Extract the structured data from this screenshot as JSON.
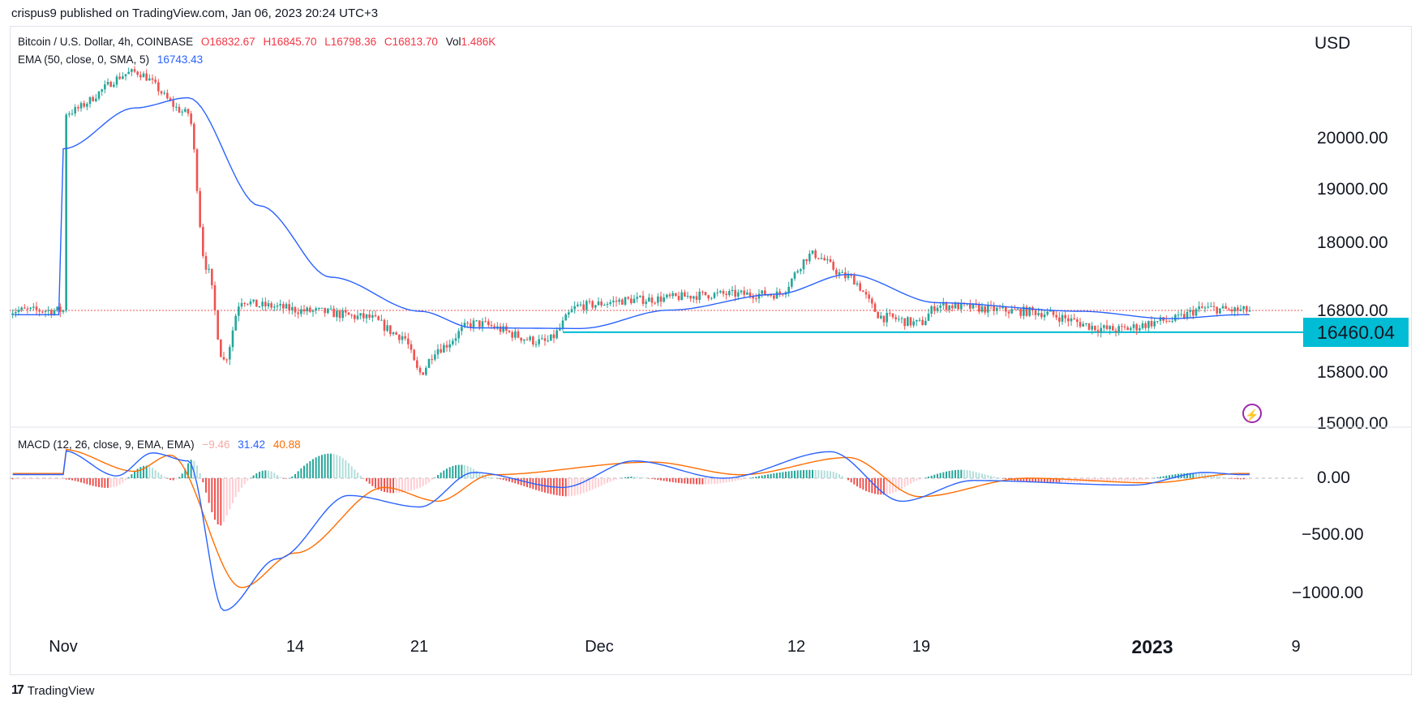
{
  "publisher": "crispus9 published on TradingView.com, Jan 06, 2023 20:24 UTC+3",
  "legend": {
    "symbol": "Bitcoin / U.S. Dollar, 4h, COINBASE",
    "open": "O16832.67",
    "high": "H16845.70",
    "low": "L16798.36",
    "close": "C16813.70",
    "vol_label": "Vol",
    "vol": "1.486K",
    "ema_label": "EMA (50, close, 0, SMA, 5)",
    "ema_value": "16743.43",
    "macd_label": "MACD (12, 26, close, 9, EMA, EMA)",
    "macd_hist": "−9.46",
    "macd_line": "31.42",
    "macd_signal": "40.88"
  },
  "currency": "USD",
  "price_label": "16460.04",
  "price_ticks": [
    "20000.00",
    "19000.00",
    "18000.00",
    "16800.00",
    "15800.00",
    "15000.00"
  ],
  "macd_ticks": [
    "0.00",
    "−500.00",
    "−1000.00"
  ],
  "time_ticks": [
    {
      "label": "Nov",
      "bold": false
    },
    {
      "label": "14",
      "bold": false
    },
    {
      "label": "21",
      "bold": false
    },
    {
      "label": "Dec",
      "bold": false
    },
    {
      "label": "12",
      "bold": false
    },
    {
      "label": "19",
      "bold": false
    },
    {
      "label": "2023",
      "bold": true
    },
    {
      "label": "9",
      "bold": false
    }
  ],
  "brand": "TradingView",
  "colors": {
    "up": "#26a69a",
    "down": "#ef5350",
    "ema": "#2962ff",
    "macd": "#2962ff",
    "signal": "#ff6d00",
    "support": "#00bcd4"
  },
  "chart_data": {
    "type": "candlestick",
    "title": "Bitcoin / U.S. Dollar, 4h, COINBASE",
    "x_label": "",
    "y_label": "USD",
    "x_ticks": [
      "Nov",
      "14",
      "21",
      "Dec",
      "12",
      "19",
      "2023",
      "9"
    ],
    "price_anchors": [
      {
        "date": "2022-11-01",
        "price": 20500
      },
      {
        "date": "2022-11-05",
        "price": 21300
      },
      {
        "date": "2022-11-08",
        "price": 20500
      },
      {
        "date": "2022-11-09",
        "price": 17600
      },
      {
        "date": "2022-11-10",
        "price": 16000
      },
      {
        "date": "2022-11-11",
        "price": 17000
      },
      {
        "date": "2022-11-12",
        "price": 16900
      },
      {
        "date": "2022-11-15",
        "price": 16800
      },
      {
        "date": "2022-11-18",
        "price": 16700
      },
      {
        "date": "2022-11-20",
        "price": 16400
      },
      {
        "date": "2022-11-21",
        "price": 15800
      },
      {
        "date": "2022-11-22",
        "price": 16200
      },
      {
        "date": "2022-11-24",
        "price": 16600
      },
      {
        "date": "2022-11-28",
        "price": 16300
      },
      {
        "date": "2022-11-30",
        "price": 16900
      },
      {
        "date": "2022-12-03",
        "price": 17000
      },
      {
        "date": "2022-12-08",
        "price": 17100
      },
      {
        "date": "2022-12-11",
        "price": 17100
      },
      {
        "date": "2022-12-13",
        "price": 17800
      },
      {
        "date": "2022-12-15",
        "price": 17400
      },
      {
        "date": "2022-12-17",
        "price": 16700
      },
      {
        "date": "2022-12-19",
        "price": 16600
      },
      {
        "date": "2022-12-20",
        "price": 16900
      },
      {
        "date": "2022-12-25",
        "price": 16800
      },
      {
        "date": "2022-12-30",
        "price": 16500
      },
      {
        "date": "2023-01-02",
        "price": 16650
      },
      {
        "date": "2023-01-04",
        "price": 16850
      },
      {
        "date": "2023-01-06",
        "price": 16813.7
      }
    ],
    "ema50_anchors": [
      {
        "date": "2022-11-01",
        "value": 19800
      },
      {
        "date": "2022-11-05",
        "value": 20600
      },
      {
        "date": "2022-11-08",
        "value": 20800
      },
      {
        "date": "2022-11-12",
        "value": 18700
      },
      {
        "date": "2022-11-16",
        "value": 17400
      },
      {
        "date": "2022-11-21",
        "value": 16800
      },
      {
        "date": "2022-11-24",
        "value": 16530
      },
      {
        "date": "2022-11-30",
        "value": 16520
      },
      {
        "date": "2022-12-05",
        "value": 16820
      },
      {
        "date": "2022-12-11",
        "value": 17100
      },
      {
        "date": "2022-12-15",
        "value": 17450
      },
      {
        "date": "2022-12-20",
        "value": 16950
      },
      {
        "date": "2022-12-28",
        "value": 16800
      },
      {
        "date": "2023-01-02",
        "value": 16680
      },
      {
        "date": "2023-01-06",
        "value": 16743.43
      }
    ],
    "support_level": 16460.04,
    "last_price": 16813.7,
    "y_ticks_price": [
      20000,
      19000,
      18000,
      16800,
      15800,
      15000
    ],
    "macd": {
      "params": "12, 26, close, 9, EMA, EMA",
      "macd_anchors": [
        {
          "date": "2022-11-01",
          "value": 240
        },
        {
          "date": "2022-11-04",
          "value": 20
        },
        {
          "date": "2022-11-06",
          "value": 220
        },
        {
          "date": "2022-11-08",
          "value": 150
        },
        {
          "date": "2022-11-10",
          "value": -1150
        },
        {
          "date": "2022-11-13",
          "value": -700
        },
        {
          "date": "2022-11-17",
          "value": -150
        },
        {
          "date": "2022-11-21",
          "value": -250
        },
        {
          "date": "2022-11-24",
          "value": 50
        },
        {
          "date": "2022-11-29",
          "value": -80
        },
        {
          "date": "2022-12-03",
          "value": 150
        },
        {
          "date": "2022-12-08",
          "value": 0
        },
        {
          "date": "2022-12-14",
          "value": 230
        },
        {
          "date": "2022-12-18",
          "value": -200
        },
        {
          "date": "2022-12-22",
          "value": -20
        },
        {
          "date": "2022-12-31",
          "value": -60
        },
        {
          "date": "2023-01-04",
          "value": 50
        },
        {
          "date": "2023-01-06",
          "value": 31.42
        }
      ],
      "signal_anchors": [
        {
          "date": "2022-11-01",
          "value": 250
        },
        {
          "date": "2022-11-05",
          "value": 60
        },
        {
          "date": "2022-11-07",
          "value": 200
        },
        {
          "date": "2022-11-11",
          "value": -950
        },
        {
          "date": "2022-11-14",
          "value": -650
        },
        {
          "date": "2022-11-19",
          "value": -80
        },
        {
          "date": "2022-11-22",
          "value": -200
        },
        {
          "date": "2022-11-25",
          "value": 30
        },
        {
          "date": "2022-12-04",
          "value": 140
        },
        {
          "date": "2022-12-09",
          "value": 30
        },
        {
          "date": "2022-12-15",
          "value": 180
        },
        {
          "date": "2022-12-19",
          "value": -160
        },
        {
          "date": "2022-12-25",
          "value": 0
        },
        {
          "date": "2023-01-01",
          "value": -40
        },
        {
          "date": "2023-01-06",
          "value": 40.88
        }
      ],
      "last_histogram": -9.46,
      "y_ticks": [
        0,
        -500,
        -1000
      ]
    }
  }
}
